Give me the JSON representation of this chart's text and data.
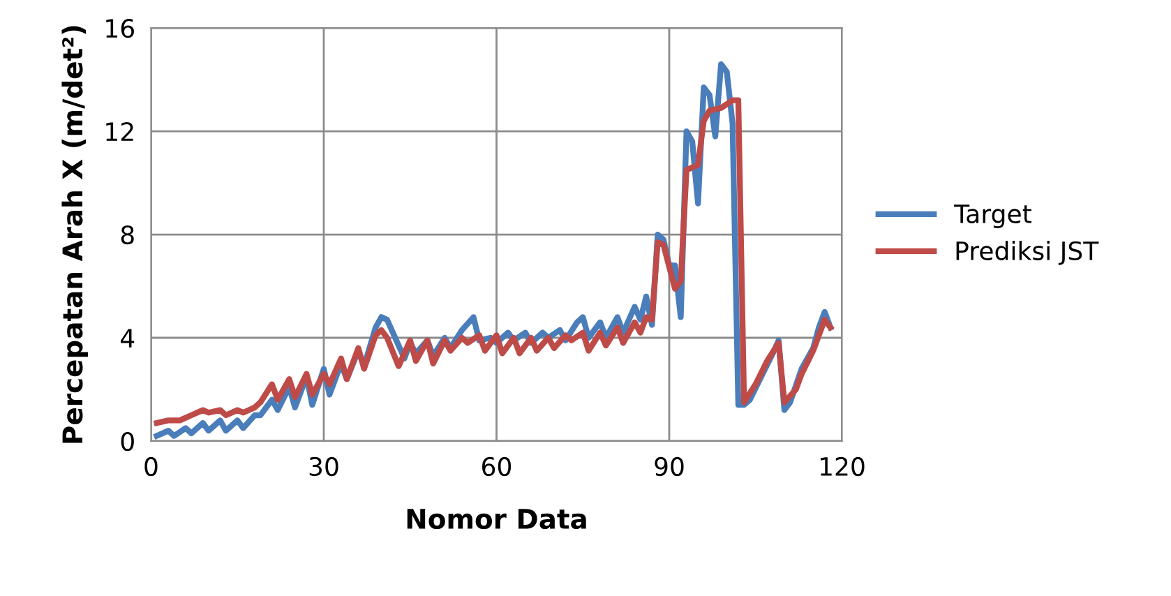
{
  "chart_data": {
    "type": "line",
    "xlabel": "Nomor Data",
    "ylabel": "Percepatan Arah X (m/det²)",
    "xlim": [
      0,
      120
    ],
    "xticks": [
      0,
      30,
      60,
      90,
      120
    ],
    "ylim": [
      0,
      16
    ],
    "yticks": [
      0,
      4,
      8,
      12,
      16
    ],
    "grid": true,
    "legend": "right",
    "line_style": "solid",
    "series": [
      {
        "name": "Target",
        "color": "#4a7ebb",
        "x": [
          1,
          3,
          4,
          6,
          7,
          9,
          10,
          12,
          13,
          15,
          16,
          18,
          19,
          21,
          22,
          24,
          25,
          27,
          28,
          30,
          31,
          33,
          34,
          36,
          37,
          39,
          40,
          41,
          42,
          44,
          45,
          46,
          48,
          49,
          51,
          52,
          54,
          56,
          57,
          59,
          60,
          62,
          63,
          65,
          66,
          68,
          69,
          71,
          72,
          74,
          75,
          76,
          78,
          79,
          81,
          82,
          84,
          85,
          86,
          87,
          88,
          89,
          90,
          91,
          92,
          93,
          94,
          95,
          96,
          97,
          98,
          99,
          100,
          101,
          102,
          103,
          104,
          106,
          108,
          109,
          110,
          111,
          113,
          115,
          116,
          117,
          118
        ],
        "values": [
          0.2,
          0.4,
          0.2,
          0.5,
          0.3,
          0.7,
          0.4,
          0.8,
          0.4,
          0.8,
          0.5,
          1.0,
          1.0,
          1.6,
          1.2,
          2.1,
          1.3,
          2.5,
          1.4,
          2.8,
          1.8,
          3.0,
          2.4,
          3.5,
          2.9,
          4.4,
          4.8,
          4.7,
          4.2,
          3.2,
          3.8,
          3.4,
          3.9,
          3.3,
          4.0,
          3.6,
          4.3,
          4.8,
          3.9,
          4.0,
          3.8,
          4.2,
          3.9,
          4.2,
          3.8,
          4.2,
          4.0,
          4.3,
          3.9,
          4.6,
          4.8,
          4.0,
          4.6,
          4.0,
          4.8,
          4.2,
          5.2,
          4.7,
          5.6,
          4.5,
          8.0,
          7.8,
          6.8,
          6.8,
          4.8,
          12.0,
          11.6,
          9.2,
          13.7,
          13.4,
          11.8,
          14.6,
          14.3,
          12.3,
          1.4,
          1.4,
          1.6,
          2.5,
          3.4,
          3.9,
          1.2,
          1.5,
          2.8,
          3.6,
          4.4,
          5.0,
          4.4
        ]
      },
      {
        "name": "Prediksi JST",
        "color": "#be4b48",
        "x": [
          1,
          3,
          5,
          7,
          9,
          10,
          12,
          13,
          15,
          16,
          18,
          19,
          21,
          22,
          24,
          25,
          27,
          28,
          30,
          31,
          33,
          34,
          36,
          37,
          39,
          40,
          41,
          43,
          45,
          46,
          48,
          49,
          51,
          52,
          54,
          55,
          57,
          58,
          60,
          61,
          63,
          64,
          66,
          67,
          69,
          70,
          72,
          73,
          75,
          76,
          78,
          79,
          81,
          82,
          84,
          85,
          86,
          87,
          88,
          89,
          91,
          92,
          93,
          94,
          95,
          96,
          97,
          99,
          101,
          102,
          103,
          105,
          107,
          109,
          110,
          112,
          113,
          115,
          117,
          118
        ],
        "values": [
          0.7,
          0.8,
          0.8,
          1.0,
          1.2,
          1.1,
          1.2,
          1.0,
          1.2,
          1.1,
          1.3,
          1.5,
          2.2,
          1.6,
          2.4,
          1.7,
          2.6,
          1.8,
          2.6,
          2.2,
          3.2,
          2.4,
          3.6,
          2.8,
          4.1,
          4.3,
          4.0,
          2.9,
          3.9,
          3.1,
          3.9,
          3.0,
          3.9,
          3.5,
          4.0,
          3.8,
          4.1,
          3.5,
          4.1,
          3.4,
          4.0,
          3.4,
          4.0,
          3.5,
          4.0,
          3.6,
          4.1,
          3.9,
          4.2,
          3.5,
          4.2,
          3.7,
          4.4,
          3.8,
          4.6,
          4.2,
          4.8,
          4.7,
          7.7,
          7.6,
          5.9,
          6.2,
          10.5,
          10.6,
          10.7,
          12.4,
          12.8,
          12.9,
          13.2,
          13.2,
          1.5,
          2.2,
          3.1,
          3.8,
          1.5,
          2.0,
          2.6,
          3.5,
          4.7,
          4.4
        ]
      }
    ]
  }
}
